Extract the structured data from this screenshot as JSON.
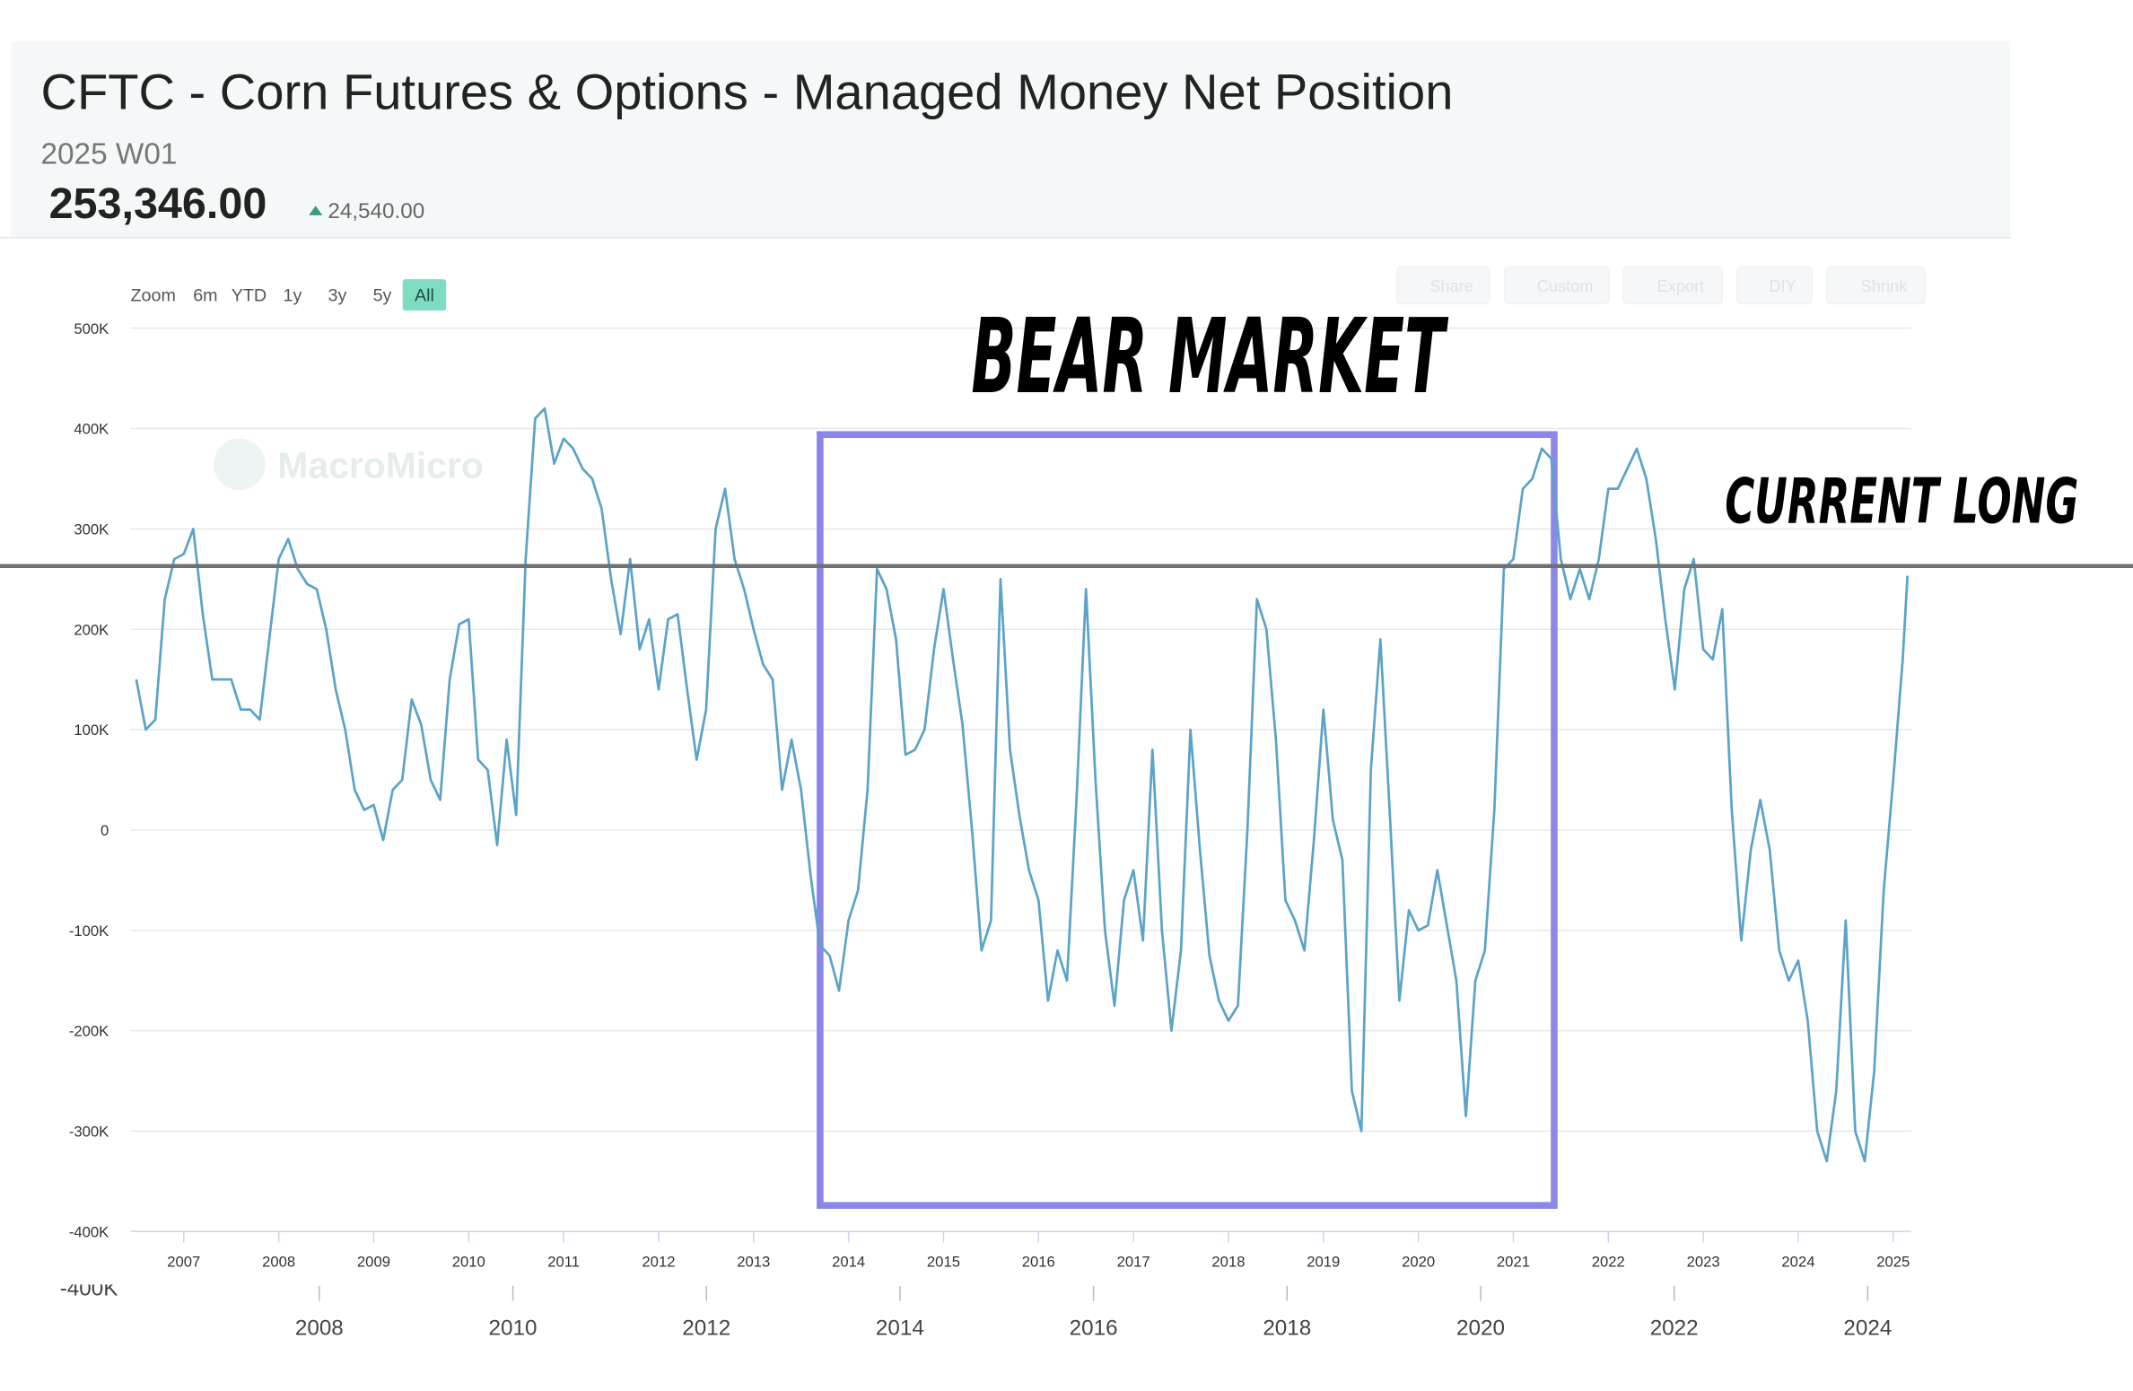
{
  "chart_data": {
    "type": "line",
    "title": "CFTC - Corn Futures & Options - Managed Money Net Position",
    "subtitle": "2025 W01",
    "latest_value": "253,346.00",
    "latest_change": "24,540.00",
    "zoom_label": "Zoom",
    "zoom_buttons": [
      "6m",
      "YTD",
      "1y",
      "3y",
      "5y",
      "All"
    ],
    "active_zoom": 5,
    "toolbar_buttons": [
      "Share",
      "Custom",
      "Export",
      "DIY",
      "Shrink"
    ],
    "watermark": "MacroMicro",
    "color": "#5ba3c8",
    "grid": true,
    "xlim": [
      2006.44,
      2025.19
    ],
    "xticks": [
      2007,
      2008,
      2009,
      2010,
      2011,
      2012,
      2013,
      2014,
      2015,
      2016,
      2017,
      2018,
      2019,
      2020,
      2021,
      2022,
      2023,
      2024,
      2025
    ],
    "ylim": [
      -400000,
      500000
    ],
    "yticks": [
      {
        "value": 500000,
        "label": "500K"
      },
      {
        "value": 400000,
        "label": "400K"
      },
      {
        "value": 300000,
        "label": "300K"
      },
      {
        "value": 200000,
        "label": "200K"
      },
      {
        "value": 100000,
        "label": "100K"
      },
      0,
      {
        "value": -100000,
        "label": "-100K"
      },
      {
        "value": -200000,
        "label": "-200K"
      },
      {
        "value": -300000,
        "label": "-300K"
      },
      {
        "value": -400000,
        "label": "-400K"
      }
    ],
    "x2lim": [
      2006.05,
      2024.45
    ],
    "x2ticks": [
      2008,
      2010,
      2012,
      2014,
      2016,
      2018,
      2020,
      2022,
      2024
    ],
    "x2_corner_label": "-400K",
    "x": [
      2006.5,
      2006.6,
      2006.7,
      2006.8,
      2006.9,
      2007.0,
      2007.1,
      2007.2,
      2007.3,
      2007.4,
      2007.5,
      2007.6,
      2007.7,
      2007.8,
      2007.9,
      2008.0,
      2008.1,
      2008.2,
      2008.3,
      2008.4,
      2008.5,
      2008.6,
      2008.7,
      2008.8,
      2008.9,
      2009.0,
      2009.1,
      2009.2,
      2009.3,
      2009.4,
      2009.5,
      2009.6,
      2009.7,
      2009.8,
      2009.9,
      2010.0,
      2010.1,
      2010.2,
      2010.3,
      2010.4,
      2010.5,
      2010.6,
      2010.7,
      2010.8,
      2010.9,
      2011.0,
      2011.1,
      2011.2,
      2011.3,
      2011.4,
      2011.5,
      2011.6,
      2011.7,
      2011.8,
      2011.9,
      2012.0,
      2012.1,
      2012.2,
      2012.3,
      2012.4,
      2012.5,
      2012.6,
      2012.7,
      2012.8,
      2012.9,
      2013.0,
      2013.1,
      2013.2,
      2013.3,
      2013.4,
      2013.5,
      2013.6,
      2013.7,
      2013.8,
      2013.9,
      2014.0,
      2014.1,
      2014.2,
      2014.3,
      2014.4,
      2014.5,
      2014.6,
      2014.7,
      2014.8,
      2014.9,
      2015.0,
      2015.1,
      2015.2,
      2015.3,
      2015.4,
      2015.5,
      2015.6,
      2015.7,
      2015.8,
      2015.9,
      2016.0,
      2016.1,
      2016.2,
      2016.3,
      2016.4,
      2016.5,
      2016.6,
      2016.7,
      2016.8,
      2016.9,
      2017.0,
      2017.1,
      2017.2,
      2017.3,
      2017.4,
      2017.5,
      2017.6,
      2017.7,
      2017.8,
      2017.9,
      2018.0,
      2018.1,
      2018.2,
      2018.3,
      2018.4,
      2018.5,
      2018.6,
      2018.7,
      2018.8,
      2018.9,
      2019.0,
      2019.1,
      2019.2,
      2019.3,
      2019.4,
      2019.5,
      2019.6,
      2019.7,
      2019.8,
      2019.9,
      2020.0,
      2020.1,
      2020.2,
      2020.3,
      2020.4,
      2020.5,
      2020.6,
      2020.7,
      2020.8,
      2020.9,
      2021.0,
      2021.1,
      2021.2,
      2021.3,
      2021.4,
      2021.5,
      2021.6,
      2021.7,
      2021.8,
      2021.9,
      2022.0,
      2022.1,
      2022.2,
      2022.3,
      2022.4,
      2022.5,
      2022.6,
      2022.7,
      2022.8,
      2022.9,
      2023.0,
      2023.1,
      2023.2,
      2023.3,
      2023.4,
      2023.5,
      2023.6,
      2023.7,
      2023.8,
      2023.9,
      2024.0,
      2024.1,
      2024.2,
      2024.3,
      2024.4,
      2024.5,
      2024.6,
      2024.7,
      2024.8,
      2024.9,
      2025.0,
      2025.1,
      2025.15
    ],
    "values": [
      150000,
      100000,
      110000,
      230000,
      270000,
      275000,
      300000,
      215000,
      150000,
      150000,
      150000,
      120000,
      120000,
      110000,
      190000,
      270000,
      290000,
      260000,
      245000,
      240000,
      200000,
      140000,
      100000,
      40000,
      20000,
      25000,
      -10000,
      40000,
      50000,
      130000,
      105000,
      50000,
      30000,
      150000,
      205000,
      210000,
      70000,
      60000,
      -15000,
      90000,
      15000,
      270000,
      410000,
      420000,
      365000,
      390000,
      380000,
      360000,
      350000,
      320000,
      250000,
      195000,
      270000,
      180000,
      210000,
      140000,
      210000,
      215000,
      140000,
      70000,
      120000,
      300000,
      340000,
      270000,
      240000,
      200000,
      165000,
      150000,
      40000,
      90000,
      40000,
      -45000,
      -115000,
      -125000,
      -160000,
      -90000,
      -60000,
      40000,
      260000,
      240000,
      190000,
      75000,
      80000,
      100000,
      180000,
      240000,
      170000,
      105000,
      0,
      -120000,
      -90000,
      250000,
      80000,
      14000,
      -40000,
      -70000,
      -170000,
      -120000,
      -150000,
      30000,
      240000,
      50000,
      -100000,
      -175000,
      -70000,
      -40000,
      -110000,
      80000,
      -100000,
      -200000,
      -120000,
      100000,
      -20000,
      -125000,
      -170000,
      -190000,
      -175000,
      0,
      230000,
      200000,
      90000,
      -70000,
      -90000,
      -120000,
      -10000,
      120000,
      10000,
      -30000,
      -260000,
      -300000,
      60000,
      190000,
      15000,
      -170000,
      -80000,
      -100000,
      -95000,
      -40000,
      -95000,
      -150000,
      -285000,
      -150000,
      -120000,
      20000,
      260000,
      270000,
      340000,
      350000,
      380000,
      370000,
      270000,
      230000,
      260000,
      230000,
      270000,
      340000,
      340000,
      360000,
      380000,
      350000,
      290000,
      210000,
      140000,
      240000,
      270000,
      180000,
      170000,
      220000,
      20000,
      -110000,
      -20000,
      30000,
      -20000,
      -120000,
      -150000,
      -130000,
      -190000,
      -300000,
      -330000,
      -260000,
      -90000,
      -300000,
      -330000,
      -240000,
      -60000,
      50000,
      170000,
      253346
    ],
    "annotations": {
      "bear_market": {
        "text": "BEAR MARKET",
        "x0": 2013.7,
        "x1": 2021.43,
        "y0": 394000,
        "y1": -374000,
        "color": "#8b87ea"
      },
      "current_long": {
        "text": "CURRENT LONG",
        "value": 263000,
        "color": "#707070"
      }
    }
  }
}
